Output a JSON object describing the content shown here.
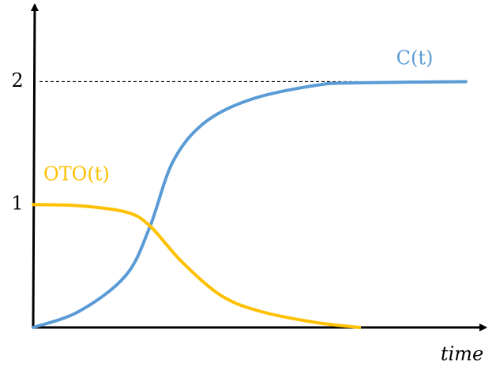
{
  "chart_data": {
    "type": "line",
    "xlabel": "time",
    "ylim": [
      0,
      2.6
    ],
    "yticks": [
      1,
      2
    ],
    "xlim": [
      0,
      10
    ],
    "hlines": [
      2
    ],
    "series": [
      {
        "name": "C(t)",
        "color": "#5b9bd5",
        "x": [
          0,
          1.01,
          2.04,
          2.57,
          3.09,
          3.8,
          4.85,
          6.25,
          7.12,
          9.56
        ],
        "values": [
          0,
          0.13,
          0.42,
          0.81,
          1.35,
          1.67,
          1.86,
          1.97,
          1.99,
          2.0
        ]
      },
      {
        "name": "OTO(t)",
        "color": "#ffc000",
        "x": [
          0,
          1.01,
          2.04,
          2.57,
          3.27,
          4.15,
          5.03,
          6.25,
          7.21
        ],
        "values": [
          1.0,
          0.99,
          0.94,
          0.83,
          0.54,
          0.26,
          0.13,
          0.04,
          0
        ]
      }
    ]
  }
}
